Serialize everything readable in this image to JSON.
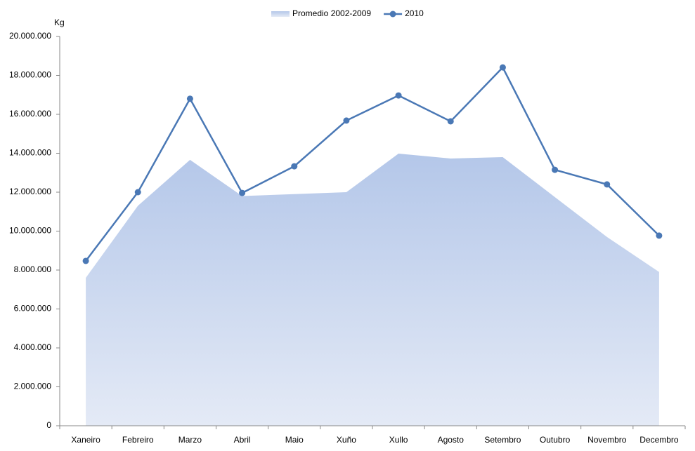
{
  "chart_data": {
    "type": "line",
    "y_label": "Kg",
    "categories": [
      "Xaneiro",
      "Febreiro",
      "Marzo",
      "Abril",
      "Maio",
      "Xuño",
      "Xullo",
      "Agosto",
      "Setembro",
      "Outubro",
      "Novembro",
      "Decembro"
    ],
    "series": [
      {
        "name": "Promedio 2002-2009",
        "type": "area",
        "color": "#b4c7e9",
        "values": [
          7600000,
          11300000,
          13660000,
          11800000,
          11900000,
          12000000,
          13980000,
          13730000,
          13800000,
          11750000,
          9700000,
          7900000
        ]
      },
      {
        "name": "2010",
        "type": "line",
        "color": "#4a78b5",
        "values": [
          8470000,
          12000000,
          16800000,
          11960000,
          13330000,
          15680000,
          16970000,
          15640000,
          18410000,
          13150000,
          12400000,
          9770000
        ]
      }
    ],
    "ylim": [
      0,
      20000000
    ],
    "yticks": [
      0,
      {
        "value": 2000000,
        "label": "2.000.000"
      },
      {
        "value": 4000000,
        "label": "4.000.000"
      },
      {
        "value": 6000000,
        "label": "6.000.000"
      },
      {
        "value": 8000000,
        "label": "8.000.000"
      },
      {
        "value": 10000000,
        "label": "10.000.000"
      },
      {
        "value": 12000000,
        "label": "12.000.000"
      },
      {
        "value": 14000000,
        "label": "14.000.000"
      },
      {
        "value": 16000000,
        "label": "16.000.000"
      },
      {
        "value": 18000000,
        "label": "18.000.000"
      },
      {
        "value": 20000000,
        "label": "20.000.000"
      }
    ],
    "grid": false,
    "legend": "top"
  }
}
